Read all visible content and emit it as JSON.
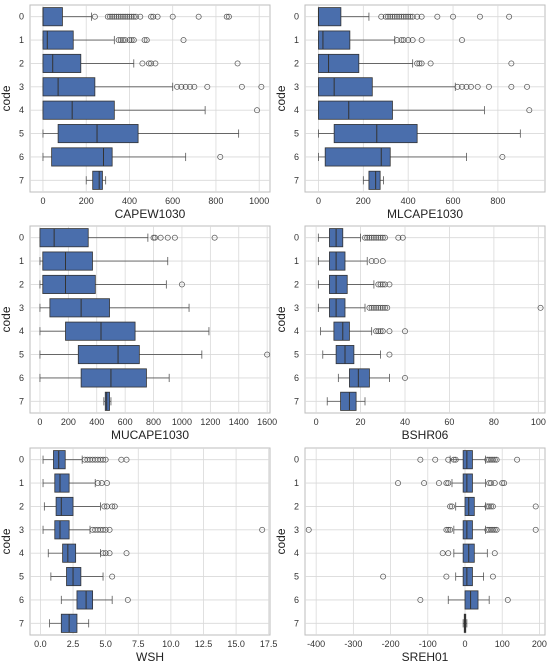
{
  "colors": {
    "box": "#4a6eac",
    "grid": "#d9d9d9",
    "frame": "#bdbdbd"
  },
  "chart_data": [
    {
      "type": "boxplot",
      "xlabel": "CAPEW1030",
      "ylabel": "code",
      "categories": [
        "0",
        "1",
        "2",
        "3",
        "4",
        "5",
        "6",
        "7"
      ],
      "xlim": [
        -60,
        1050
      ],
      "xticks": [
        0,
        200,
        400,
        600,
        800,
        1000
      ],
      "boxes": [
        {
          "whislo": 0,
          "q1": 0,
          "med": 0,
          "q3": 90,
          "whishi": 225,
          "fliers": [
            240,
            300,
            310,
            320,
            330,
            340,
            350,
            360,
            370,
            380,
            390,
            400,
            410,
            420,
            430,
            450,
            500,
            510,
            530,
            600,
            720,
            850,
            860
          ]
        },
        {
          "whislo": 0,
          "q1": 0,
          "med": 20,
          "q3": 140,
          "whishi": 330,
          "fliers": [
            350,
            360,
            370,
            380,
            400,
            410,
            420,
            470,
            480,
            650
          ]
        },
        {
          "whislo": 0,
          "q1": 0,
          "med": 45,
          "q3": 175,
          "whishi": 420,
          "fliers": [
            460,
            490,
            500,
            520,
            900
          ]
        },
        {
          "whislo": 0,
          "q1": 0,
          "med": 70,
          "q3": 240,
          "whishi": 600,
          "fliers": [
            620,
            640,
            660,
            680,
            700,
            760,
            920,
            1010
          ]
        },
        {
          "whislo": 0,
          "q1": 0,
          "med": 135,
          "q3": 330,
          "whishi": 750,
          "fliers": [
            990
          ]
        },
        {
          "whislo": 0,
          "q1": 70,
          "med": 250,
          "q3": 440,
          "whishi": 905,
          "fliers": []
        },
        {
          "whislo": 0,
          "q1": 40,
          "med": 280,
          "q3": 320,
          "whishi": 660,
          "fliers": [
            820
          ]
        },
        {
          "whislo": 200,
          "q1": 230,
          "med": 260,
          "q3": 275,
          "whishi": 290,
          "fliers": []
        }
      ]
    },
    {
      "type": "boxplot",
      "xlabel": "MLCAPE1030",
      "ylabel": "code",
      "categories": [
        "0",
        "1",
        "2",
        "3",
        "4",
        "5",
        "6",
        "7"
      ],
      "xlim": [
        -60,
        1010
      ],
      "xticks": [
        0,
        200,
        400,
        600,
        800
      ],
      "boxes": [
        {
          "whislo": 0,
          "q1": 0,
          "med": 0,
          "q3": 100,
          "whishi": 225,
          "fliers": [
            280,
            300,
            310,
            320,
            330,
            340,
            350,
            360,
            370,
            380,
            390,
            400,
            410,
            420,
            440,
            460,
            530,
            600,
            720,
            850
          ]
        },
        {
          "whislo": 0,
          "q1": 0,
          "med": 20,
          "q3": 140,
          "whishi": 340,
          "fliers": [
            350,
            370,
            380,
            400,
            420,
            460,
            640
          ]
        },
        {
          "whislo": 0,
          "q1": 0,
          "med": 45,
          "q3": 180,
          "whishi": 420,
          "fliers": [
            440,
            450,
            460,
            500,
            860
          ]
        },
        {
          "whislo": 0,
          "q1": 0,
          "med": 70,
          "q3": 240,
          "whishi": 610,
          "fliers": [
            620,
            640,
            660,
            680,
            710,
            760,
            860,
            930
          ]
        },
        {
          "whislo": 0,
          "q1": 0,
          "med": 135,
          "q3": 330,
          "whishi": 740,
          "fliers": [
            940
          ]
        },
        {
          "whislo": 0,
          "q1": 70,
          "med": 260,
          "q3": 440,
          "whishi": 900,
          "fliers": []
        },
        {
          "whislo": 0,
          "q1": 30,
          "med": 280,
          "q3": 320,
          "whishi": 660,
          "fliers": [
            820
          ]
        },
        {
          "whislo": 200,
          "q1": 225,
          "med": 255,
          "q3": 275,
          "whishi": 290,
          "fliers": []
        }
      ]
    },
    {
      "type": "boxplot",
      "xlabel": "MUCAPE1030",
      "ylabel": "code",
      "categories": [
        "0",
        "1",
        "2",
        "3",
        "4",
        "5",
        "6",
        "7"
      ],
      "xlim": [
        -70,
        1620
      ],
      "xticks": [
        0,
        200,
        400,
        600,
        800,
        1000,
        1200,
        1400,
        1600
      ],
      "boxes": [
        {
          "whislo": 0,
          "q1": 0,
          "med": 100,
          "q3": 340,
          "whishi": 760,
          "fliers": [
            800,
            810,
            850,
            900,
            950,
            1230
          ]
        },
        {
          "whislo": 0,
          "q1": 20,
          "med": 180,
          "q3": 370,
          "whishi": 900,
          "fliers": []
        },
        {
          "whislo": 0,
          "q1": 20,
          "med": 180,
          "q3": 390,
          "whishi": 890,
          "fliers": [
            1000
          ]
        },
        {
          "whislo": 0,
          "q1": 70,
          "med": 290,
          "q3": 490,
          "whishi": 1050,
          "fliers": []
        },
        {
          "whislo": 0,
          "q1": 180,
          "med": 430,
          "q3": 670,
          "whishi": 1190,
          "fliers": []
        },
        {
          "whislo": 0,
          "q1": 270,
          "med": 550,
          "q3": 700,
          "whishi": 1140,
          "fliers": [
            1600
          ]
        },
        {
          "whislo": 0,
          "q1": 290,
          "med": 500,
          "q3": 750,
          "whishi": 910,
          "fliers": []
        },
        {
          "whislo": 450,
          "q1": 460,
          "med": 470,
          "q3": 490,
          "whishi": 500,
          "fliers": []
        }
      ]
    },
    {
      "type": "boxplot",
      "xlabel": "BSHR06",
      "ylabel": "code",
      "categories": [
        "0",
        "1",
        "2",
        "3",
        "4",
        "5",
        "6",
        "7"
      ],
      "xlim": [
        -5,
        103
      ],
      "xticks": [
        0,
        20,
        40,
        60,
        80,
        100
      ],
      "boxes": [
        {
          "whislo": 1,
          "q1": 6,
          "med": 9,
          "q3": 12,
          "whishi": 20,
          "fliers": [
            22,
            23,
            24,
            25,
            26,
            27,
            28,
            29,
            30,
            31,
            37,
            39
          ]
        },
        {
          "whislo": 1,
          "q1": 6,
          "med": 9,
          "q3": 13,
          "whishi": 23,
          "fliers": [
            25,
            27,
            30
          ]
        },
        {
          "whislo": 1,
          "q1": 6,
          "med": 9,
          "q3": 14,
          "whishi": 26,
          "fliers": [
            28,
            29,
            30,
            31,
            33
          ]
        },
        {
          "whislo": 1,
          "q1": 6,
          "med": 9,
          "q3": 13,
          "whishi": 22,
          "fliers": [
            24,
            25,
            26,
            27,
            28,
            29,
            30,
            31,
            32,
            101
          ]
        },
        {
          "whislo": 2,
          "q1": 8,
          "med": 12,
          "q3": 15,
          "whishi": 25,
          "fliers": [
            27,
            28,
            29,
            30,
            33,
            40
          ]
        },
        {
          "whislo": 3,
          "q1": 9,
          "med": 13,
          "q3": 17,
          "whishi": 29,
          "fliers": [
            33
          ]
        },
        {
          "whislo": 10,
          "q1": 15,
          "med": 19,
          "q3": 24,
          "whishi": 33,
          "fliers": [
            40
          ]
        },
        {
          "whislo": 5,
          "q1": 11,
          "med": 15,
          "q3": 18,
          "whishi": 22,
          "fliers": []
        }
      ]
    },
    {
      "type": "boxplot",
      "xlabel": "WSH",
      "ylabel": "code",
      "categories": [
        "0",
        "1",
        "2",
        "3",
        "4",
        "5",
        "6",
        "7"
      ],
      "xlim": [
        -0.8,
        17.6
      ],
      "xticks": [
        0.0,
        2.5,
        5.0,
        7.5,
        10.0,
        12.5,
        15.0,
        17.5
      ],
      "boxes": [
        {
          "whislo": 0.2,
          "q1": 1.0,
          "med": 1.4,
          "q3": 1.9,
          "whishi": 3.2,
          "fliers": [
            3.4,
            3.6,
            3.8,
            4.0,
            4.2,
            4.4,
            4.6,
            4.8,
            5.0,
            6.2,
            6.6
          ]
        },
        {
          "whislo": 0.2,
          "q1": 1.1,
          "med": 1.5,
          "q3": 2.2,
          "whishi": 4.2,
          "fliers": [
            4.4,
            4.7,
            5.1
          ]
        },
        {
          "whislo": 0.3,
          "q1": 1.2,
          "med": 1.6,
          "q3": 2.5,
          "whishi": 4.6,
          "fliers": [
            4.9,
            5.1,
            5.5,
            5.7
          ]
        },
        {
          "whislo": 0.2,
          "q1": 1.1,
          "med": 1.5,
          "q3": 2.2,
          "whishi": 3.8,
          "fliers": [
            4.0,
            4.2,
            4.4,
            4.6,
            4.8,
            5.0,
            5.3,
            17.0
          ]
        },
        {
          "whislo": 0.6,
          "q1": 1.7,
          "med": 2.1,
          "q3": 2.7,
          "whishi": 4.6,
          "fliers": [
            4.8,
            5.0,
            5.3,
            6.6
          ]
        },
        {
          "whislo": 0.8,
          "q1": 2.0,
          "med": 2.5,
          "q3": 3.1,
          "whishi": 4.8,
          "fliers": [
            5.5
          ]
        },
        {
          "whislo": 1.6,
          "q1": 2.8,
          "med": 3.5,
          "q3": 4.0,
          "whishi": 5.5,
          "fliers": [
            6.7
          ]
        },
        {
          "whislo": 0.7,
          "q1": 1.6,
          "med": 2.2,
          "q3": 2.8,
          "whishi": 3.7,
          "fliers": []
        }
      ]
    },
    {
      "type": "boxplot",
      "xlabel": "SREH01",
      "ylabel": "code",
      "categories": [
        "0",
        "1",
        "2",
        "3",
        "4",
        "5",
        "6",
        "7"
      ],
      "xlim": [
        -430,
        215
      ],
      "xticks": [
        -400,
        -300,
        -200,
        -100,
        0,
        100,
        200
      ],
      "boxes": [
        {
          "whislo": -40,
          "q1": -5,
          "med": 5,
          "q3": 20,
          "whishi": 55,
          "fliers": [
            -120,
            -80,
            -45,
            -30,
            -25,
            60,
            65,
            70,
            75,
            80,
            85,
            140
          ]
        },
        {
          "whislo": -35,
          "q1": -5,
          "med": 5,
          "q3": 20,
          "whishi": 55,
          "fliers": [
            -180,
            -110,
            -70,
            -50,
            -45,
            65,
            70,
            80,
            100,
            105
          ]
        },
        {
          "whislo": -25,
          "q1": 0,
          "med": 10,
          "q3": 25,
          "whishi": 55,
          "fliers": [
            -40,
            -35,
            60,
            65,
            70,
            75,
            190
          ]
        },
        {
          "whislo": -30,
          "q1": -5,
          "med": 5,
          "q3": 20,
          "whishi": 55,
          "fliers": [
            -420,
            -50,
            -45,
            -40,
            60,
            65,
            70,
            75,
            80,
            85,
            190
          ]
        },
        {
          "whislo": -30,
          "q1": -5,
          "med": 10,
          "q3": 25,
          "whishi": 60,
          "fliers": [
            -60,
            -45,
            80
          ]
        },
        {
          "whislo": -25,
          "q1": -5,
          "med": 5,
          "q3": 20,
          "whishi": 50,
          "fliers": [
            -220,
            -50,
            75
          ]
        },
        {
          "whislo": -45,
          "q1": 0,
          "med": 15,
          "q3": 35,
          "whishi": 65,
          "fliers": [
            -120,
            115
          ]
        },
        {
          "whislo": -5,
          "q1": -2,
          "med": 0,
          "q3": 2,
          "whishi": 5,
          "fliers": []
        }
      ]
    }
  ]
}
